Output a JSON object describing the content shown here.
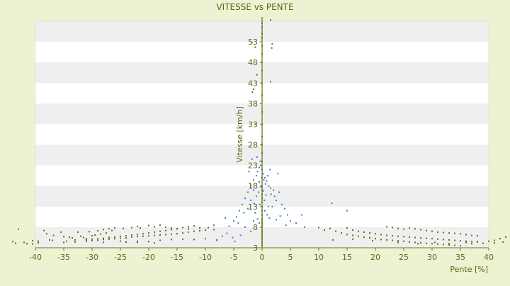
{
  "chart_data": {
    "type": "scatter",
    "title": "VITESSE vs PENTE",
    "xlabel": "Pente [%]",
    "ylabel": "Vitesse [km/h]",
    "xlim": [
      -40,
      40
    ],
    "ylim": [
      3,
      58
    ],
    "x_ticks": [
      -40,
      -35,
      -30,
      -25,
      -20,
      -15,
      -10,
      -5,
      0,
      5,
      10,
      15,
      20,
      25,
      30,
      35,
      40
    ],
    "y_ticks": [
      3,
      8,
      13,
      18,
      23,
      28,
      33,
      38,
      43,
      48,
      53
    ],
    "grid": "horizontal bands",
    "legend": "none",
    "colors": {
      "page_bg": "#eef1d2",
      "plot_bg": "#ffffff",
      "band": "#efefef",
      "axis": "#6b7a1e",
      "text": "#5a6619",
      "series_green": "#5d7418",
      "series_blue": "#3a7fcf"
    },
    "series": [
      {
        "key": "green",
        "points": [
          [
            -44,
            4.5
          ],
          [
            -43.5,
            4.1
          ],
          [
            -42,
            4.3
          ],
          [
            -41.5,
            4.0
          ],
          [
            -40.5,
            4.7
          ],
          [
            -40.5,
            3.9
          ],
          [
            -39.5,
            4.2
          ],
          [
            -39.5,
            4.6
          ],
          [
            -43,
            7.5
          ],
          [
            -38.5,
            7.2
          ],
          [
            -38,
            6.4
          ],
          [
            -37.5,
            4.9
          ],
          [
            -37,
            4.8
          ],
          [
            -36.8,
            6.0
          ],
          [
            -35.5,
            6.8
          ],
          [
            -35,
            5.7
          ],
          [
            -34.5,
            4.6
          ],
          [
            -34,
            5.6
          ],
          [
            -33.5,
            5.4
          ],
          [
            -33,
            4.9
          ],
          [
            -32.5,
            6.8
          ],
          [
            -32,
            5.8
          ],
          [
            -31.5,
            5.5
          ],
          [
            -31,
            5.2
          ],
          [
            -30.5,
            6.9
          ],
          [
            -30,
            5.9
          ],
          [
            -29.5,
            6.1
          ],
          [
            -29,
            7.1
          ],
          [
            -28.5,
            6.3
          ],
          [
            -28,
            7.4
          ],
          [
            -27.5,
            6.6
          ],
          [
            -27,
            7.6
          ],
          [
            -26.5,
            7.2
          ],
          [
            -26,
            7.8
          ],
          [
            -31,
            4.6
          ],
          [
            -30,
            4.7
          ],
          [
            -29,
            4.8
          ],
          [
            -28,
            5.0
          ],
          [
            -27,
            5.1
          ],
          [
            -26,
            5.2
          ],
          [
            -25,
            5.3
          ],
          [
            -24,
            5.4
          ],
          [
            -23,
            5.6
          ],
          [
            -22,
            5.7
          ],
          [
            -21,
            5.8
          ],
          [
            -20,
            5.9
          ],
          [
            -19,
            6.0
          ],
          [
            -18,
            6.1
          ],
          [
            -17,
            6.2
          ],
          [
            -16,
            6.3
          ],
          [
            -15,
            6.4
          ],
          [
            -14,
            6.6
          ],
          [
            -13,
            6.8
          ],
          [
            -12,
            7.0
          ],
          [
            -11,
            7.1
          ],
          [
            -10,
            7.3
          ],
          [
            -31,
            4.9
          ],
          [
            -30,
            5.1
          ],
          [
            -29,
            5.2
          ],
          [
            -28,
            5.3
          ],
          [
            -27,
            5.5
          ],
          [
            -26,
            5.6
          ],
          [
            -25,
            5.8
          ],
          [
            -24,
            5.9
          ],
          [
            -23,
            6.1
          ],
          [
            -22,
            6.2
          ],
          [
            -21,
            6.4
          ],
          [
            -20,
            6.6
          ],
          [
            -19,
            6.8
          ],
          [
            -18,
            7.0
          ],
          [
            -17,
            7.2
          ],
          [
            -16,
            7.4
          ],
          [
            -15,
            7.6
          ],
          [
            -14,
            7.9
          ],
          [
            -13,
            8.1
          ],
          [
            -12,
            8.3
          ],
          [
            -24.5,
            7.7
          ],
          [
            -23,
            7.9
          ],
          [
            -22,
            8.2
          ],
          [
            -21.5,
            7.8
          ],
          [
            -20,
            8.4
          ],
          [
            -19,
            8.1
          ],
          [
            -18,
            8.5
          ],
          [
            -17,
            8.0
          ],
          [
            -16,
            7.8
          ],
          [
            -15,
            7.6
          ],
          [
            -13,
            7.6
          ],
          [
            -11,
            7.8
          ],
          [
            -9.5,
            7.9
          ],
          [
            -8.5,
            7.4
          ],
          [
            -24,
            4.4
          ],
          [
            -22,
            4.6
          ],
          [
            -20,
            4.5
          ],
          [
            -18,
            4.8
          ],
          [
            -16,
            5.0
          ],
          [
            -14,
            5.1
          ],
          [
            -12,
            5.0
          ],
          [
            -10,
            5.2
          ],
          [
            -8,
            4.9
          ],
          [
            -35,
            4.3
          ],
          [
            -33,
            4.4
          ],
          [
            -28,
            4.3
          ],
          [
            -25,
            4.6
          ],
          [
            -22,
            4.3
          ],
          [
            -19,
            4.2
          ],
          [
            0,
            3.5
          ],
          [
            0,
            4.0
          ],
          [
            0,
            4.5
          ],
          [
            0,
            5.0
          ],
          [
            0,
            5.5
          ],
          [
            0,
            6.0
          ],
          [
            0,
            6.5
          ],
          [
            0,
            7.0
          ],
          [
            0,
            7.5
          ],
          [
            0,
            8.0
          ],
          [
            0,
            8.5
          ],
          [
            0,
            9.0
          ],
          [
            0,
            9.5
          ],
          [
            0,
            10.0
          ],
          [
            0,
            11.0
          ],
          [
            0,
            12.0
          ],
          [
            0,
            13.0
          ],
          [
            0,
            14.0
          ],
          [
            0,
            15.0
          ],
          [
            0,
            16.0
          ],
          [
            0,
            17.0
          ],
          [
            0,
            18.0
          ],
          [
            0,
            20.0
          ],
          [
            0,
            22.0
          ],
          [
            0,
            24.0
          ],
          [
            0,
            26.0
          ],
          [
            0,
            28.0
          ],
          [
            0,
            30.0
          ],
          [
            0,
            33.0
          ],
          [
            0,
            36.0
          ],
          [
            0,
            40.0
          ],
          [
            0,
            43.0
          ],
          [
            0,
            46.0
          ],
          [
            0,
            48.0
          ],
          [
            0,
            50.0
          ],
          [
            0,
            52.0
          ],
          [
            0,
            54.0
          ],
          [
            0,
            55.0
          ],
          [
            0,
            56.5
          ],
          [
            0,
            57.5
          ],
          [
            -1.8,
            52.8
          ],
          [
            -1.2,
            51.7
          ],
          [
            -1.5,
            41.5
          ],
          [
            -1.7,
            40.8
          ],
          [
            -1.2,
            33.0
          ],
          [
            -0.9,
            45.0
          ],
          [
            1.5,
            43.3
          ],
          [
            1.8,
            52.5
          ],
          [
            1.7,
            51.5
          ],
          [
            1.5,
            58.3
          ],
          [
            10,
            7.9
          ],
          [
            11,
            7.3
          ],
          [
            12,
            7.7
          ],
          [
            13,
            7.0
          ],
          [
            14,
            6.6
          ],
          [
            15,
            6.2
          ],
          [
            16,
            6.0
          ],
          [
            17,
            5.8
          ],
          [
            18,
            5.6
          ],
          [
            19,
            5.4
          ],
          [
            20,
            5.2
          ],
          [
            21,
            5.0
          ],
          [
            22,
            4.9
          ],
          [
            23,
            4.8
          ],
          [
            24,
            4.7
          ],
          [
            25,
            4.6
          ],
          [
            26,
            4.4
          ],
          [
            27,
            4.3
          ],
          [
            28,
            4.2
          ],
          [
            29,
            4.1
          ],
          [
            30,
            4.0
          ],
          [
            31,
            3.9
          ],
          [
            32,
            3.8
          ],
          [
            33,
            3.7
          ],
          [
            34,
            3.6
          ],
          [
            35,
            3.5
          ],
          [
            15,
            7.8
          ],
          [
            16,
            7.3
          ],
          [
            17,
            7.0
          ],
          [
            18,
            6.8
          ],
          [
            19,
            6.6
          ],
          [
            20,
            6.4
          ],
          [
            21,
            6.2
          ],
          [
            22,
            6.0
          ],
          [
            23,
            5.9
          ],
          [
            24,
            5.8
          ],
          [
            25,
            5.7
          ],
          [
            26,
            5.6
          ],
          [
            27,
            5.5
          ],
          [
            28,
            5.4
          ],
          [
            29,
            5.3
          ],
          [
            30,
            5.2
          ],
          [
            31,
            5.1
          ],
          [
            32,
            5.0
          ],
          [
            33,
            4.9
          ],
          [
            34,
            4.8
          ],
          [
            35,
            4.7
          ],
          [
            36,
            4.6
          ],
          [
            37,
            4.5
          ],
          [
            38,
            4.4
          ],
          [
            22,
            8.1
          ],
          [
            23,
            7.9
          ],
          [
            24,
            7.7
          ],
          [
            25,
            7.5
          ],
          [
            26,
            7.8
          ],
          [
            27,
            7.6
          ],
          [
            28,
            7.4
          ],
          [
            29,
            7.2
          ],
          [
            30,
            7.0
          ],
          [
            31,
            6.8
          ],
          [
            32,
            6.7
          ],
          [
            33,
            6.6
          ],
          [
            34,
            6.5
          ],
          [
            35,
            6.4
          ],
          [
            36,
            6.2
          ],
          [
            37,
            6.0
          ],
          [
            38,
            5.9
          ],
          [
            36,
            4.3
          ],
          [
            37,
            4.0
          ],
          [
            38,
            4.5
          ],
          [
            39,
            4.1
          ],
          [
            40,
            4.6
          ],
          [
            41,
            4.8
          ],
          [
            42,
            5.2
          ],
          [
            43,
            5.6
          ],
          [
            44,
            4.9
          ],
          [
            42.5,
            4.4
          ],
          [
            41,
            4.2
          ],
          [
            12.5,
            4.9
          ],
          [
            16,
            5.1
          ],
          [
            19.5,
            4.7
          ],
          [
            24,
            4.3
          ],
          [
            27.5,
            4.0
          ],
          [
            30.5,
            4.3
          ],
          [
            33,
            4.0
          ]
        ]
      },
      {
        "key": "blue",
        "points": [
          [
            -8,
            4.8
          ],
          [
            -7,
            5.8
          ],
          [
            -6.2,
            6.5
          ],
          [
            -5.8,
            8.2
          ],
          [
            -5,
            9.5
          ],
          [
            -4.5,
            10.5
          ],
          [
            -4,
            12.0
          ],
          [
            -3.5,
            13.5
          ],
          [
            -3,
            15.0
          ],
          [
            -2.5,
            16.5
          ],
          [
            -2,
            14.5
          ],
          [
            -2,
            18.0
          ],
          [
            -1.5,
            17.0
          ],
          [
            -1.5,
            19.5
          ],
          [
            -1,
            20.5
          ],
          [
            -1,
            15.5
          ],
          [
            -0.8,
            21.5
          ],
          [
            -0.5,
            22.5
          ],
          [
            -0.5,
            19.0
          ],
          [
            -0.3,
            24.0
          ],
          [
            -0.2,
            23.0
          ],
          [
            0.2,
            21.0
          ],
          [
            0.3,
            19.5
          ],
          [
            0.5,
            20.0
          ],
          [
            0.6,
            18.5
          ],
          [
            0.8,
            19.2
          ],
          [
            1,
            20.5
          ],
          [
            1.2,
            18.0
          ],
          [
            1.5,
            17.5
          ],
          [
            1.6,
            16.0
          ],
          [
            2,
            17.0
          ],
          [
            2.2,
            15.5
          ],
          [
            2.5,
            14.5
          ],
          [
            3,
            16.5
          ],
          [
            3.5,
            13.5
          ],
          [
            4,
            12.5
          ],
          [
            4.5,
            11.0
          ],
          [
            5,
            9.5
          ],
          [
            6,
            9.0
          ],
          [
            7,
            11.0
          ],
          [
            7.5,
            8.0
          ],
          [
            -1.2,
            11.5
          ],
          [
            -0.8,
            10.0
          ],
          [
            -0.5,
            9.0
          ],
          [
            0.5,
            12.0
          ],
          [
            0.9,
            11.0
          ],
          [
            1.3,
            10.2
          ],
          [
            1.8,
            13.0
          ],
          [
            -2.5,
            12.5
          ],
          [
            -3.2,
            11.5
          ],
          [
            -4.2,
            9.0
          ],
          [
            -6.5,
            10.2
          ],
          [
            -5.2,
            5.5
          ],
          [
            -4.8,
            4.5
          ],
          [
            -3.8,
            6.0
          ],
          [
            -3,
            8.0
          ],
          [
            -2,
            7.0
          ],
          [
            -1.5,
            9.5
          ],
          [
            2.5,
            9.8
          ],
          [
            3.2,
            10.7
          ],
          [
            4.2,
            8.5
          ],
          [
            2.8,
            21.0
          ],
          [
            1.4,
            22.0
          ],
          [
            -2.3,
            21.5
          ],
          [
            -1.8,
            24.5
          ],
          [
            -0.9,
            25.0
          ],
          [
            -0.4,
            13.5
          ],
          [
            0.4,
            14.5
          ],
          [
            -0.6,
            16.5
          ],
          [
            0.7,
            15.8
          ],
          [
            -1.4,
            13.8
          ],
          [
            1.1,
            13.0
          ],
          [
            -0.2,
            17.8
          ],
          [
            0.2,
            16.8
          ],
          [
            12.3,
            13.8
          ],
          [
            15,
            12.0
          ],
          [
            -8.5,
            8.5
          ]
        ]
      }
    ]
  }
}
